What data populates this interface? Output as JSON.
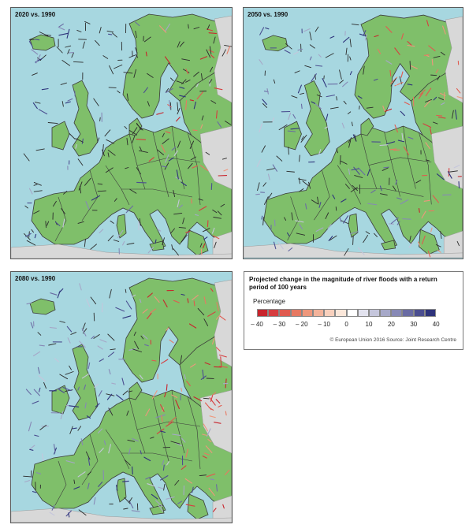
{
  "panels": [
    {
      "id": "2020",
      "title": "2020 vs. 1990",
      "drying": 0.35,
      "wetting": 0.35
    },
    {
      "id": "2050",
      "title": "2050 vs. 1990",
      "drying": 0.6,
      "wetting": 0.55
    },
    {
      "id": "2080",
      "title": "2080 vs. 1990",
      "drying": 0.8,
      "wetting": 0.75
    }
  ],
  "legend": {
    "title": "Projected change in the magnitude of river floods with a return period of 100 years",
    "unit_label": "Percentage",
    "ticks": [
      "– 40",
      "– 30",
      "– 20",
      "– 10",
      "0",
      "10",
      "20",
      "30",
      "40"
    ],
    "colors": [
      "#c8242c",
      "#d63d3f",
      "#e05a4f",
      "#e77962",
      "#ee977c",
      "#f3b39b",
      "#f8d0bd",
      "#fbe7da",
      "#ffffff",
      "#e2e2ee",
      "#c5c6dc",
      "#a6a8c8",
      "#8789b6",
      "#696ba3",
      "#4b4e90",
      "#2e337b"
    ],
    "source": "© European Union 2016 Source: Joint Research Centre"
  },
  "map_colors": {
    "sea": "#a7d7e0",
    "land": "#7fbf6a",
    "outside": "#d8d8d8",
    "borders": "#3b3b3b"
  }
}
